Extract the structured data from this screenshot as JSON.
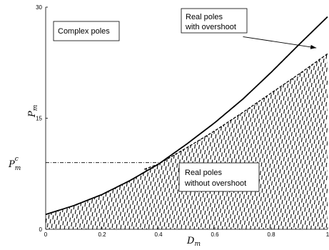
{
  "chart_data": {
    "type": "line",
    "xlabel": "D",
    "xlabel_sub": "m",
    "ylabel": "P",
    "ylabel_sub": "m",
    "xlim": [
      0,
      1
    ],
    "ylim": [
      0,
      30
    ],
    "x_ticks": [
      "0",
      "0.2",
      "0.4",
      "0.6",
      "0.8",
      "1"
    ],
    "x_tick_values": [
      0,
      0.2,
      0.4,
      0.6,
      0.8,
      1
    ],
    "y_ticks": [
      "0",
      "15",
      "30"
    ],
    "y_tick_values": [
      0,
      15,
      30
    ],
    "grid": false,
    "series": [
      {
        "style": "solid",
        "x": [
          0,
          0.1,
          0.2,
          0.3,
          0.4,
          0.5,
          0.6,
          0.7,
          0.8,
          0.9,
          1.0
        ],
        "y": [
          2.0,
          3.2,
          4.7,
          6.6,
          8.8,
          11.5,
          14.4,
          17.6,
          21.2,
          25.0,
          28.7
        ]
      },
      {
        "style": "dashed",
        "x": [
          0.35,
          0.4,
          0.5,
          0.6,
          0.7,
          0.8,
          0.9,
          1.0
        ],
        "y": [
          8.1,
          8.8,
          11.0,
          13.3,
          15.8,
          18.4,
          21.0,
          23.7
        ]
      }
    ],
    "pmc": {
      "label": "P",
      "sup": "c",
      "sub": "m",
      "y": 9.0,
      "x_end": 0.4
    },
    "annotations": [
      {
        "id": "complex",
        "lines": [
          "Complex poles"
        ]
      },
      {
        "id": "real_over",
        "lines": [
          "Real poles",
          "with overshoot"
        ]
      },
      {
        "id": "real_noover",
        "lines": [
          "Real poles",
          "without overshoot"
        ]
      }
    ],
    "arrow": {
      "from": [
        0.7,
        26.0
      ],
      "to": [
        0.96,
        24.5
      ]
    }
  }
}
